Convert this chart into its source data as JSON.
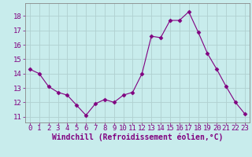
{
  "x": [
    0,
    1,
    2,
    3,
    4,
    5,
    6,
    7,
    8,
    9,
    10,
    11,
    12,
    13,
    14,
    15,
    16,
    17,
    18,
    19,
    20,
    21,
    22,
    23
  ],
  "y": [
    14.3,
    14.0,
    13.1,
    12.7,
    12.5,
    11.8,
    11.1,
    11.9,
    12.2,
    12.0,
    12.5,
    12.7,
    14.0,
    16.6,
    16.5,
    17.7,
    17.7,
    18.3,
    16.9,
    15.4,
    14.3,
    13.1,
    12.0,
    11.2
  ],
  "line_color": "#800080",
  "marker": "D",
  "marker_size": 2.5,
  "bg_color": "#c8ecec",
  "grid_color": "#b0d0d0",
  "xlabel": "Windchill (Refroidissement éolien,°C)",
  "xlabel_color": "#800080",
  "tick_color": "#800080",
  "yticks": [
    11,
    12,
    13,
    14,
    15,
    16,
    17,
    18
  ],
  "xticks": [
    0,
    1,
    2,
    3,
    4,
    5,
    6,
    7,
    8,
    9,
    10,
    11,
    12,
    13,
    14,
    15,
    16,
    17,
    18,
    19,
    20,
    21,
    22,
    23
  ],
  "ylim": [
    10.6,
    18.9
  ],
  "xlim": [
    -0.5,
    23.5
  ],
  "font_size": 6.5,
  "xlabel_size": 7.0
}
